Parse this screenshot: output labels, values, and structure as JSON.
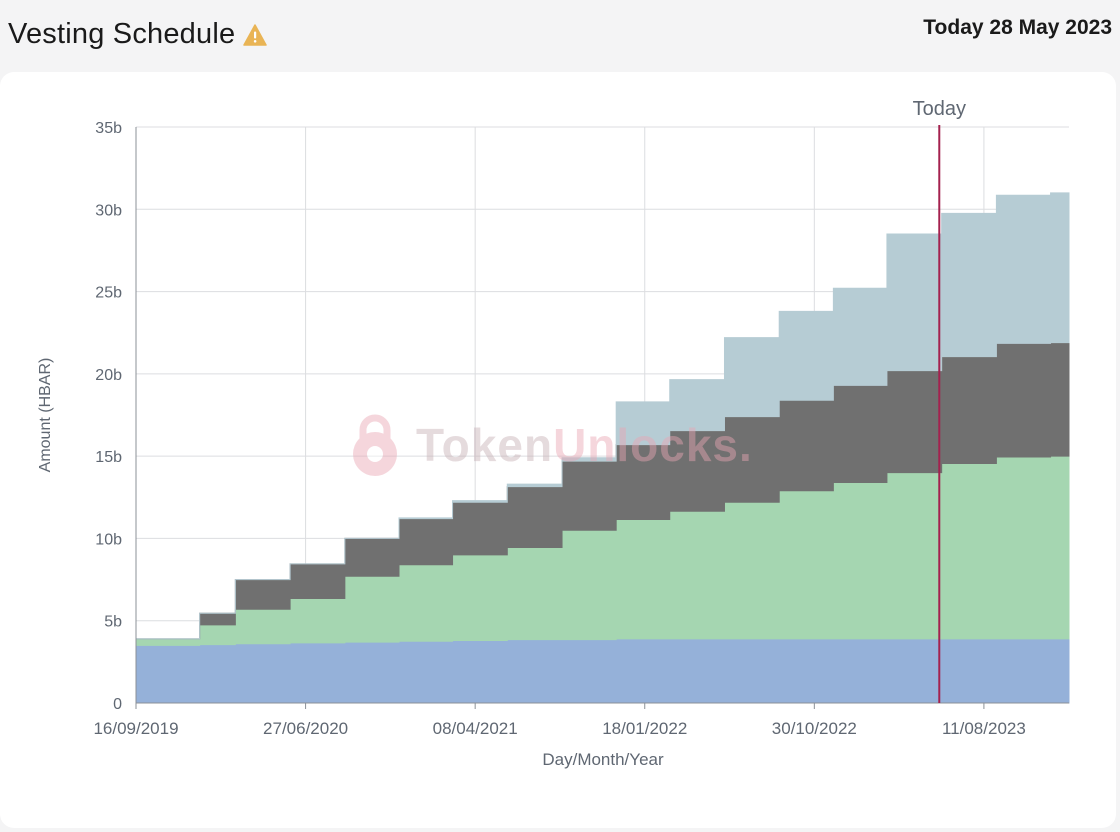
{
  "header": {
    "title": "Vesting Schedule",
    "warning_icon": "warning-triangle-icon",
    "today_text": "Today 28 May 2023"
  },
  "watermark": {
    "icon": "lock-icon",
    "text_a": "Token",
    "text_b": "Unlocks",
    "text_c": "."
  },
  "chart_data": {
    "type": "area",
    "step": true,
    "stacked": true,
    "title": "",
    "xlabel": "Day/Month/Year",
    "ylabel": "Amount (HBAR)",
    "x_start": "16/09/2019",
    "x_end": "01/01/2024",
    "ylim": [
      0,
      35
    ],
    "y_ticks": [
      "0",
      "5b",
      "10b",
      "15b",
      "20b",
      "25b",
      "30b",
      "35b"
    ],
    "y_tick_values": [
      0,
      5,
      10,
      15,
      20,
      25,
      30,
      35
    ],
    "x_ticks": [
      "16/09/2019",
      "27/06/2020",
      "08/04/2021",
      "18/01/2022",
      "30/10/2022",
      "11/08/2023"
    ],
    "x_tick_dates": [
      "2019-09-16",
      "2020-06-27",
      "2021-04-08",
      "2022-01-18",
      "2022-10-30",
      "2023-08-11"
    ],
    "grid": true,
    "today": {
      "date": "2023-05-28",
      "label": "Today",
      "color": "#a4214e"
    },
    "x": [
      "2019-09-16",
      "2020-01-01",
      "2020-03-01",
      "2020-06-01",
      "2020-09-01",
      "2020-12-01",
      "2021-03-01",
      "2021-06-01",
      "2021-09-01",
      "2021-12-01",
      "2022-03-01",
      "2022-06-01",
      "2022-09-01",
      "2022-12-01",
      "2023-03-01",
      "2023-06-01",
      "2023-09-01",
      "2023-12-01",
      "2024-01-01"
    ],
    "series": [
      {
        "color": "#95b1d9",
        "values": [
          3.5,
          3.55,
          3.6,
          3.65,
          3.7,
          3.75,
          3.8,
          3.85,
          3.85,
          3.9,
          3.9,
          3.9,
          3.9,
          3.9,
          3.9,
          3.9,
          3.9,
          3.9,
          3.9
        ]
      },
      {
        "color": "#a5d6b1",
        "values": [
          0.4,
          1.2,
          2.1,
          2.7,
          4.0,
          4.65,
          5.2,
          5.6,
          6.65,
          7.25,
          7.75,
          8.3,
          9.0,
          9.5,
          10.1,
          10.65,
          11.05,
          11.1,
          11.1
        ]
      },
      {
        "color": "#707070",
        "values": [
          0,
          0.7,
          1.8,
          2.1,
          2.3,
          2.8,
          3.2,
          3.7,
          4.2,
          4.55,
          4.9,
          5.2,
          5.5,
          5.9,
          6.2,
          6.5,
          6.9,
          6.9,
          6.9
        ]
      },
      {
        "color": "#b6ccd4",
        "values": [
          0,
          0,
          0,
          0,
          0,
          0.05,
          0.1,
          0.15,
          0.2,
          2.6,
          3.1,
          4.8,
          5.4,
          5.9,
          8.3,
          8.7,
          9.0,
          9.1,
          9.1
        ]
      }
    ]
  }
}
